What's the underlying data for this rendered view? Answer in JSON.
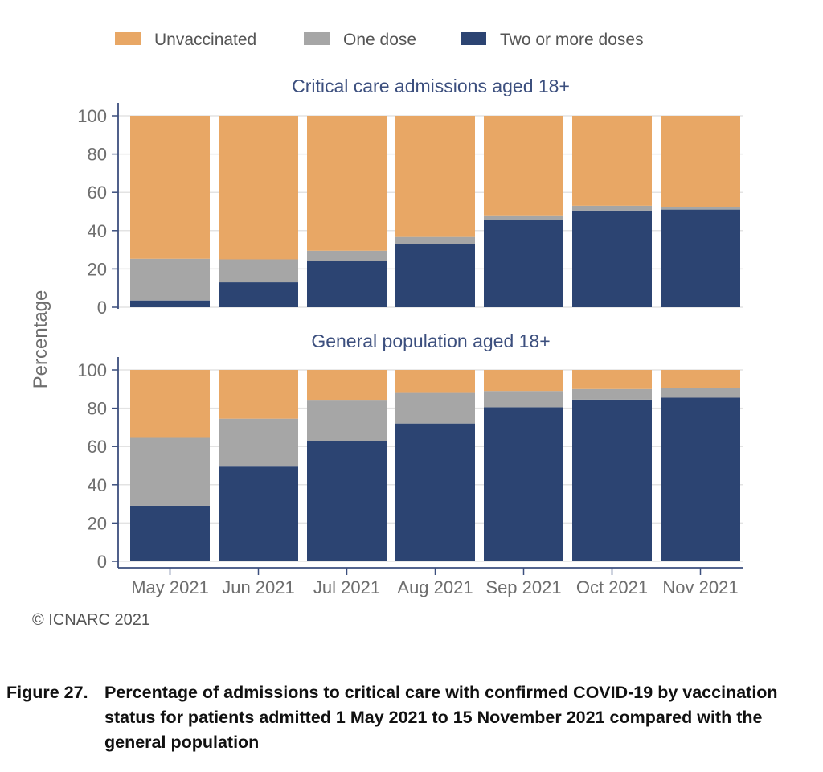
{
  "chart_data": {
    "type": "bar",
    "stacked": true,
    "legend": {
      "placement": "top",
      "entries": [
        {
          "name": "Unvaccinated",
          "color": "#e8a765"
        },
        {
          "name": "One dose",
          "color": "#a6a6a6"
        },
        {
          "name": "Two or more doses",
          "color": "#2c4472"
        }
      ]
    },
    "ylabel": "Percentage",
    "categories": [
      "May 2021",
      "Jun 2021",
      "Jul 2021",
      "Aug 2021",
      "Sep 2021",
      "Oct 2021",
      "Nov 2021"
    ],
    "yticks": [
      0,
      20,
      40,
      60,
      80,
      100
    ],
    "ylim": [
      0,
      100
    ],
    "grid": true,
    "panels": [
      {
        "title": "Critical care admissions aged 18+",
        "series": [
          {
            "name": "Two or more doses",
            "values": [
              3.5,
              13,
              24,
              33,
              45.5,
              50.5,
              51
            ]
          },
          {
            "name": "One dose",
            "values": [
              21.8,
              12,
              5.5,
              3.7,
              2.5,
              2.5,
              1.5
            ]
          },
          {
            "name": "Unvaccinated",
            "values": [
              74.7,
              75,
              70.5,
              63.3,
              52,
              47,
              47.5
            ]
          }
        ]
      },
      {
        "title": "General population aged 18+",
        "series": [
          {
            "name": "Two or more doses",
            "values": [
              29,
              49.5,
              63,
              72,
              80.5,
              84.5,
              85.5
            ]
          },
          {
            "name": "One dose",
            "values": [
              35.5,
              25,
              21,
              16,
              8.5,
              5.5,
              5
            ]
          },
          {
            "name": "Unvaccinated",
            "values": [
              35.5,
              25.5,
              16,
              12,
              11,
              10,
              9.5
            ]
          }
        ]
      }
    ]
  },
  "copyright": "© ICNARC 2021",
  "caption": {
    "number": "Figure 27.",
    "text": "Percentage of admissions to critical care with confirmed COVID-19 by vaccination status for patients admitted 1 May 2021 to 15 November 2021 compared with the general population"
  }
}
